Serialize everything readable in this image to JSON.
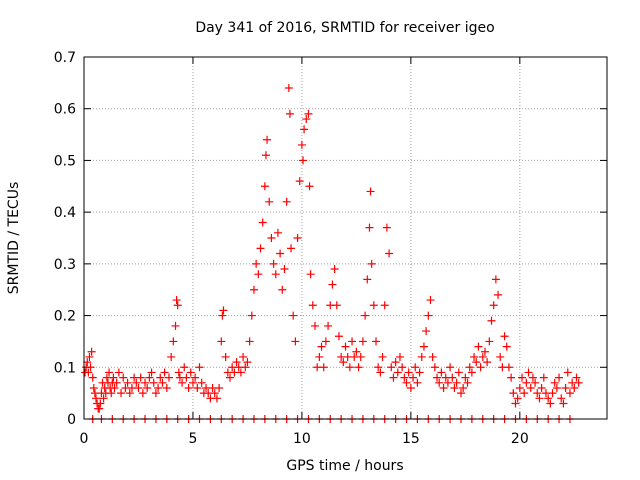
{
  "chart_data": {
    "type": "scatter",
    "title": "Day 341 of 2016, SRMTID for receiver igeo",
    "xlabel": "GPS time / hours",
    "ylabel": "SRMTID / TECUs",
    "xlim": [
      0,
      24
    ],
    "ylim": [
      0,
      0.7
    ],
    "xticks": [
      0,
      5,
      10,
      15,
      20
    ],
    "xtick_labels": [
      "0",
      "5",
      "10",
      "15",
      "20"
    ],
    "yticks": [
      0,
      0.1,
      0.2,
      0.3,
      0.4,
      0.5,
      0.6,
      0.7
    ],
    "ytick_labels": [
      "0",
      "0.1",
      "0.2",
      "0.3",
      "0.4",
      "0.5",
      "0.6",
      "0.7"
    ],
    "grid": true,
    "marker": "+",
    "marker_color": "#ff0000",
    "series": [
      {
        "name": "SRMTID",
        "points": [
          [
            0.05,
            0.09
          ],
          [
            0.1,
            0.1
          ],
          [
            0.15,
            0.11
          ],
          [
            0.2,
            0.09
          ],
          [
            0.25,
            0.12
          ],
          [
            0.3,
            0.1
          ],
          [
            0.35,
            0.13
          ],
          [
            0.4,
            0.08
          ],
          [
            0.45,
            0.06
          ],
          [
            0.5,
            0.05
          ],
          [
            0.55,
            0.04
          ],
          [
            0.6,
            0.03
          ],
          [
            0.65,
            0.02
          ],
          [
            0.7,
            0.02
          ],
          [
            0.75,
            0.03
          ],
          [
            0.8,
            0.05
          ],
          [
            0.85,
            0.07
          ],
          [
            0.9,
            0.04
          ],
          [
            0.95,
            0.06
          ],
          [
            1.0,
            0.05
          ],
          [
            1.05,
            0.08
          ],
          [
            1.1,
            0.07
          ],
          [
            1.15,
            0.09
          ],
          [
            1.2,
            0.06
          ],
          [
            1.25,
            0.05
          ],
          [
            1.3,
            0.07
          ],
          [
            1.35,
            0.08
          ],
          [
            1.4,
            0.06
          ],
          [
            1.5,
            0.07
          ],
          [
            1.6,
            0.09
          ],
          [
            1.7,
            0.05
          ],
          [
            1.8,
            0.08
          ],
          [
            1.9,
            0.06
          ],
          [
            2.0,
            0.07
          ],
          [
            2.1,
            0.05
          ],
          [
            2.2,
            0.06
          ],
          [
            2.3,
            0.08
          ],
          [
            2.4,
            0.07
          ],
          [
            2.5,
            0.06
          ],
          [
            2.6,
            0.08
          ],
          [
            2.7,
            0.05
          ],
          [
            2.8,
            0.07
          ],
          [
            2.9,
            0.06
          ],
          [
            3.0,
            0.08
          ],
          [
            3.1,
            0.09
          ],
          [
            3.2,
            0.07
          ],
          [
            3.3,
            0.05
          ],
          [
            3.4,
            0.06
          ],
          [
            3.5,
            0.08
          ],
          [
            3.6,
            0.07
          ],
          [
            3.7,
            0.09
          ],
          [
            3.8,
            0.06
          ],
          [
            3.9,
            0.08
          ],
          [
            4.0,
            0.12
          ],
          [
            4.1,
            0.15
          ],
          [
            4.2,
            0.18
          ],
          [
            4.25,
            0.23
          ],
          [
            4.3,
            0.22
          ],
          [
            4.35,
            0.09
          ],
          [
            4.4,
            0.08
          ],
          [
            4.5,
            0.07
          ],
          [
            4.6,
            0.1
          ],
          [
            4.7,
            0.08
          ],
          [
            4.8,
            0.06
          ],
          [
            4.9,
            0.09
          ],
          [
            5.0,
            0.07
          ],
          [
            5.1,
            0.08
          ],
          [
            5.2,
            0.06
          ],
          [
            5.3,
            0.1
          ],
          [
            5.4,
            0.07
          ],
          [
            5.5,
            0.05
          ],
          [
            5.6,
            0.06
          ],
          [
            5.7,
            0.05
          ],
          [
            5.8,
            0.04
          ],
          [
            5.9,
            0.06
          ],
          [
            6.0,
            0.05
          ],
          [
            6.1,
            0.04
          ],
          [
            6.2,
            0.06
          ],
          [
            6.3,
            0.15
          ],
          [
            6.35,
            0.2
          ],
          [
            6.4,
            0.21
          ],
          [
            6.5,
            0.12
          ],
          [
            6.6,
            0.09
          ],
          [
            6.7,
            0.08
          ],
          [
            6.8,
            0.1
          ],
          [
            6.9,
            0.09
          ],
          [
            7.0,
            0.11
          ],
          [
            7.1,
            0.1
          ],
          [
            7.2,
            0.09
          ],
          [
            7.3,
            0.12
          ],
          [
            7.4,
            0.1
          ],
          [
            7.5,
            0.11
          ],
          [
            7.6,
            0.15
          ],
          [
            7.7,
            0.2
          ],
          [
            7.8,
            0.25
          ],
          [
            7.9,
            0.3
          ],
          [
            8.0,
            0.28
          ],
          [
            8.1,
            0.33
          ],
          [
            8.2,
            0.38
          ],
          [
            8.3,
            0.45
          ],
          [
            8.35,
            0.51
          ],
          [
            8.4,
            0.54
          ],
          [
            8.5,
            0.42
          ],
          [
            8.6,
            0.35
          ],
          [
            8.7,
            0.3
          ],
          [
            8.8,
            0.28
          ],
          [
            8.9,
            0.36
          ],
          [
            9.0,
            0.32
          ],
          [
            9.1,
            0.25
          ],
          [
            9.2,
            0.29
          ],
          [
            9.3,
            0.42
          ],
          [
            9.4,
            0.64
          ],
          [
            9.45,
            0.59
          ],
          [
            9.5,
            0.33
          ],
          [
            9.6,
            0.2
          ],
          [
            9.7,
            0.15
          ],
          [
            9.8,
            0.35
          ],
          [
            9.9,
            0.46
          ],
          [
            10.0,
            0.53
          ],
          [
            10.05,
            0.5
          ],
          [
            10.1,
            0.56
          ],
          [
            10.2,
            0.58
          ],
          [
            10.3,
            0.59
          ],
          [
            10.35,
            0.45
          ],
          [
            10.4,
            0.28
          ],
          [
            10.5,
            0.22
          ],
          [
            10.6,
            0.18
          ],
          [
            10.7,
            0.1
          ],
          [
            10.8,
            0.12
          ],
          [
            10.9,
            0.14
          ],
          [
            11.0,
            0.1
          ],
          [
            11.1,
            0.15
          ],
          [
            11.2,
            0.18
          ],
          [
            11.3,
            0.22
          ],
          [
            11.4,
            0.26
          ],
          [
            11.5,
            0.29
          ],
          [
            11.6,
            0.22
          ],
          [
            11.7,
            0.16
          ],
          [
            11.8,
            0.12
          ],
          [
            11.9,
            0.11
          ],
          [
            12.0,
            0.14
          ],
          [
            12.1,
            0.12
          ],
          [
            12.2,
            0.1
          ],
          [
            12.3,
            0.15
          ],
          [
            12.4,
            0.12
          ],
          [
            12.5,
            0.13
          ],
          [
            12.6,
            0.1
          ],
          [
            12.7,
            0.12
          ],
          [
            12.8,
            0.15
          ],
          [
            12.9,
            0.2
          ],
          [
            13.0,
            0.27
          ],
          [
            13.1,
            0.37
          ],
          [
            13.15,
            0.44
          ],
          [
            13.2,
            0.3
          ],
          [
            13.3,
            0.22
          ],
          [
            13.4,
            0.15
          ],
          [
            13.5,
            0.1
          ],
          [
            13.6,
            0.09
          ],
          [
            13.7,
            0.12
          ],
          [
            13.8,
            0.22
          ],
          [
            13.9,
            0.37
          ],
          [
            14.0,
            0.32
          ],
          [
            14.1,
            0.1
          ],
          [
            14.2,
            0.08
          ],
          [
            14.3,
            0.11
          ],
          [
            14.4,
            0.09
          ],
          [
            14.5,
            0.12
          ],
          [
            14.6,
            0.1
          ],
          [
            14.7,
            0.08
          ],
          [
            14.8,
            0.07
          ],
          [
            14.9,
            0.09
          ],
          [
            15.0,
            0.06
          ],
          [
            15.1,
            0.08
          ],
          [
            15.2,
            0.1
          ],
          [
            15.3,
            0.07
          ],
          [
            15.4,
            0.09
          ],
          [
            15.5,
            0.12
          ],
          [
            15.6,
            0.14
          ],
          [
            15.7,
            0.17
          ],
          [
            15.8,
            0.2
          ],
          [
            15.9,
            0.23
          ],
          [
            16.0,
            0.12
          ],
          [
            16.1,
            0.1
          ],
          [
            16.2,
            0.08
          ],
          [
            16.3,
            0.07
          ],
          [
            16.4,
            0.09
          ],
          [
            16.5,
            0.06
          ],
          [
            16.6,
            0.08
          ],
          [
            16.7,
            0.07
          ],
          [
            16.8,
            0.1
          ],
          [
            16.9,
            0.08
          ],
          [
            17.0,
            0.06
          ],
          [
            17.1,
            0.07
          ],
          [
            17.2,
            0.09
          ],
          [
            17.3,
            0.05
          ],
          [
            17.4,
            0.06
          ],
          [
            17.5,
            0.08
          ],
          [
            17.6,
            0.07
          ],
          [
            17.7,
            0.1
          ],
          [
            17.8,
            0.09
          ],
          [
            17.9,
            0.12
          ],
          [
            18.0,
            0.11
          ],
          [
            18.1,
            0.14
          ],
          [
            18.2,
            0.1
          ],
          [
            18.3,
            0.12
          ],
          [
            18.4,
            0.13
          ],
          [
            18.5,
            0.11
          ],
          [
            18.6,
            0.15
          ],
          [
            18.7,
            0.19
          ],
          [
            18.8,
            0.22
          ],
          [
            18.9,
            0.27
          ],
          [
            19.0,
            0.24
          ],
          [
            19.1,
            0.12
          ],
          [
            19.2,
            0.1
          ],
          [
            19.3,
            0.16
          ],
          [
            19.4,
            0.14
          ],
          [
            19.5,
            0.1
          ],
          [
            19.6,
            0.08
          ],
          [
            19.7,
            0.05
          ],
          [
            19.8,
            0.03
          ],
          [
            19.9,
            0.04
          ],
          [
            20.0,
            0.06
          ],
          [
            20.1,
            0.08
          ],
          [
            20.2,
            0.05
          ],
          [
            20.3,
            0.07
          ],
          [
            20.4,
            0.09
          ],
          [
            20.5,
            0.06
          ],
          [
            20.6,
            0.08
          ],
          [
            20.7,
            0.07
          ],
          [
            20.8,
            0.05
          ],
          [
            20.9,
            0.04
          ],
          [
            21.0,
            0.06
          ],
          [
            21.1,
            0.08
          ],
          [
            21.2,
            0.05
          ],
          [
            21.3,
            0.04
          ],
          [
            21.4,
            0.03
          ],
          [
            21.5,
            0.05
          ],
          [
            21.6,
            0.07
          ],
          [
            21.7,
            0.06
          ],
          [
            21.8,
            0.08
          ],
          [
            21.9,
            0.04
          ],
          [
            22.0,
            0.03
          ],
          [
            22.1,
            0.06
          ],
          [
            22.2,
            0.09
          ],
          [
            22.3,
            0.05
          ],
          [
            22.4,
            0.07
          ],
          [
            22.5,
            0.06
          ],
          [
            22.6,
            0.08
          ],
          [
            22.7,
            0.07
          ],
          [
            0.4,
            0
          ],
          [
            0.8,
            0
          ],
          [
            1.3,
            0
          ],
          [
            1.8,
            0
          ],
          [
            2.3,
            0
          ],
          [
            2.8,
            0
          ],
          [
            3.3,
            0
          ],
          [
            3.8,
            0
          ],
          [
            4.3,
            0
          ],
          [
            4.8,
            0
          ],
          [
            5.3,
            0
          ],
          [
            5.8,
            0
          ],
          [
            6.3,
            0
          ],
          [
            6.8,
            0
          ],
          [
            7.3,
            0
          ],
          [
            7.8,
            0
          ],
          [
            8.3,
            0
          ],
          [
            8.8,
            0
          ],
          [
            9.3,
            0
          ],
          [
            9.8,
            0
          ],
          [
            10.3,
            0
          ],
          [
            10.8,
            0
          ],
          [
            11.3,
            0
          ],
          [
            11.8,
            0
          ],
          [
            12.3,
            0
          ],
          [
            12.8,
            0
          ],
          [
            13.3,
            0
          ],
          [
            13.8,
            0
          ],
          [
            14.3,
            0
          ],
          [
            14.8,
            0
          ],
          [
            15.3,
            0
          ],
          [
            15.8,
            0
          ],
          [
            16.3,
            0
          ],
          [
            16.8,
            0
          ],
          [
            17.3,
            0
          ],
          [
            17.8,
            0
          ],
          [
            18.3,
            0
          ],
          [
            18.8,
            0
          ],
          [
            19.3,
            0
          ],
          [
            19.8,
            0
          ],
          [
            20.3,
            0
          ],
          [
            20.8,
            0
          ],
          [
            21.3,
            0
          ],
          [
            21.8,
            0
          ],
          [
            22.3,
            0
          ]
        ]
      }
    ]
  }
}
